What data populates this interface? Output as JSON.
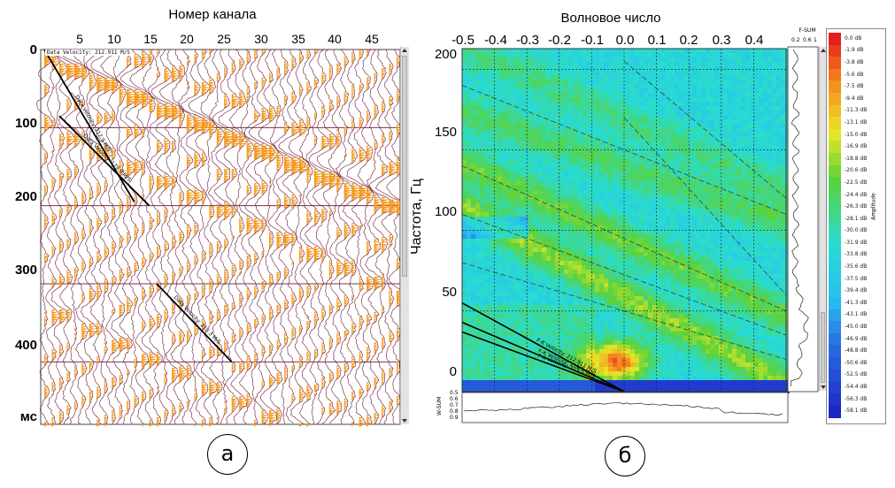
{
  "panel_a": {
    "xlabel": "Номер канала",
    "xticks": [
      "5",
      "10",
      "15",
      "20",
      "25",
      "30",
      "35",
      "40",
      "45"
    ],
    "yticks": [
      "0",
      "100",
      "200",
      "300",
      "400",
      "мс"
    ],
    "header_text": "Data Velocity: 212.911 M/S",
    "velocity_labels": [
      "Data Velocity: 212.9 M/S",
      "Data Velocity: 179.9 M/S",
      "Data Velocity: 213.3 M/S"
    ],
    "letter": "а",
    "colors": {
      "fill": "#f59a1e",
      "trace": "#6b1a3a",
      "grid": "#7a3050"
    }
  },
  "panel_b": {
    "xlabel": "Волновое число",
    "ylabel": "Частота, Гц",
    "xticks": [
      "-0.5",
      "-0.4",
      "-0.3",
      "-0.2",
      "-0.1",
      "0.0",
      "0.1",
      "0.2",
      "0.3",
      "0.4"
    ],
    "yticks": [
      "200",
      "150",
      "100",
      "50",
      "0"
    ],
    "fsum_label": "F-SUM",
    "fsum_ticks": [
      "0.2",
      "0.6",
      "1"
    ],
    "wsum_label": "W-SUM",
    "wsum_ticks": [
      "0.5",
      "0.6",
      "0.7",
      "0.8",
      "0.9"
    ],
    "velocity_labels": [
      "F-K Velocity: 212.911 M/S",
      "F-K Velocity: 179.9 M/S",
      "F-K Velocity: 213.3 M/S"
    ],
    "colorbar_label": "Amplitude",
    "colorbar_ticks": [
      "0.0 dB",
      "-1.9 dB",
      "-3.8 dB",
      "-5.6 dB",
      "-7.5 dB",
      "-9.4 dB",
      "-11.3 dB",
      "-13.1 dB",
      "-15.0 dB",
      "-16.9 dB",
      "-18.8 dB",
      "-20.6 dB",
      "-22.5 dB",
      "-24.4 dB",
      "-26.3 dB",
      "-28.1 dB",
      "-30.0 dB",
      "-31.9 dB",
      "-33.8 dB",
      "-35.6 dB",
      "-37.5 dB",
      "-39.4 dB",
      "-41.3 dB",
      "-43.1 dB",
      "-45.0 dB",
      "-46.9 dB",
      "-48.8 dB",
      "-50.6 dB",
      "-52.5 dB",
      "-54.4 dB",
      "-56.3 dB",
      "-58.1 dB"
    ],
    "letter": "б"
  },
  "chart_data": [
    {
      "type": "scatter",
      "title": "",
      "xlabel": "Номер канала",
      "ylabel": "мс",
      "xlim": [
        1,
        48
      ],
      "ylim": [
        0,
        480
      ],
      "series": [
        {
          "name": "Data Velocity: 212.9 M/S",
          "x": [
            1,
            13
          ],
          "y": [
            0,
            195
          ]
        },
        {
          "name": "Data Velocity: 179.9 M/S",
          "x": [
            3,
            15
          ],
          "y": [
            85,
            200
          ]
        },
        {
          "name": "Data Velocity: 213.3 M/S",
          "x": [
            16,
            26
          ],
          "y": [
            300,
            400
          ]
        }
      ]
    },
    {
      "type": "heatmap",
      "title": "",
      "xlabel": "Волновое число",
      "ylabel": "Частота, Гц",
      "xlim": [
        -0.5,
        0.5
      ],
      "ylim": [
        0,
        200
      ],
      "series": [
        {
          "name": "F-K Velocity: 212.911 M/S",
          "x": [
            -0.5,
            0.0
          ],
          "y": [
            55,
            0
          ]
        },
        {
          "name": "F-K Velocity: 179.9 M/S",
          "x": [
            -0.5,
            0.0
          ],
          "y": [
            43,
            0
          ]
        },
        {
          "name": "F-K Velocity: 213.3 M/S",
          "x": [
            -0.5,
            0.0
          ],
          "y": [
            37,
            0
          ]
        }
      ]
    }
  ]
}
